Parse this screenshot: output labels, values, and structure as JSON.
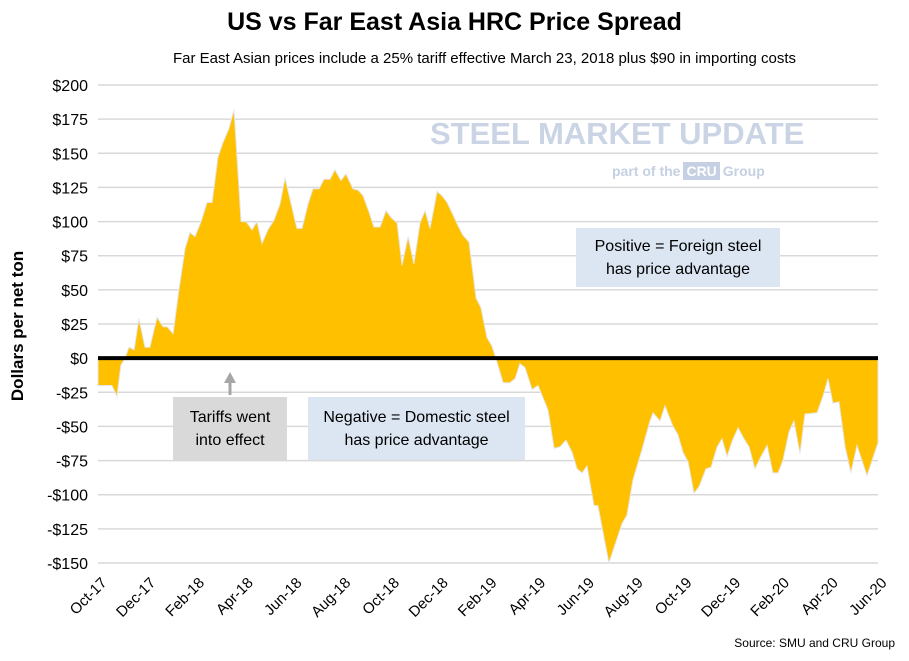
{
  "chart_data": {
    "type": "area",
    "title": "US vs Far East Asia HRC Price Spread",
    "subtitle": "Far East Asian prices include a 25% tariff effective March 23, 2018 plus $90 in importing costs",
    "ylabel": "Dollars per net ton",
    "xlabel": "",
    "x_units": "months since Oct-17",
    "ylim": [
      -150,
      200
    ],
    "xlim": [
      0,
      32
    ],
    "grid": true,
    "y_ticks": [
      200,
      175,
      150,
      125,
      100,
      75,
      50,
      25,
      0,
      -25,
      -50,
      -75,
      -100,
      -125,
      -150
    ],
    "y_tick_labels": [
      "$200",
      "$175",
      "$150",
      "$125",
      "$100",
      "$75",
      "$50",
      "$25",
      "$0",
      "-$25",
      "-$50",
      "-$75",
      "-$100",
      "-$125",
      "-$150"
    ],
    "x_tick_labels": [
      "Oct-17",
      "Dec-17",
      "Feb-18",
      "Apr-18",
      "Jun-18",
      "Aug-18",
      "Oct-18",
      "Dec-18",
      "Feb-19",
      "Apr-19",
      "Jun-19",
      "Aug-19",
      "Oct-19",
      "Dec-19",
      "Feb-20",
      "Apr-20",
      "Jun-20"
    ],
    "series": [
      {
        "name": "Price spread",
        "color": "#ffc000",
        "x": [
          0,
          0.29,
          0.57,
          0.78,
          0.94,
          1.11,
          1.27,
          1.48,
          1.68,
          1.93,
          2.13,
          2.42,
          2.67,
          2.83,
          3.08,
          3.32,
          3.57,
          3.77,
          3.98,
          4.23,
          4.47,
          4.68,
          4.92,
          5.13,
          5.37,
          5.58,
          5.87,
          6.07,
          6.32,
          6.52,
          6.73,
          6.97,
          7.22,
          7.47,
          7.67,
          7.92,
          8.16,
          8.37,
          8.62,
          8.82,
          9.07,
          9.27,
          9.52,
          9.72,
          9.97,
          10.17,
          10.46,
          10.67,
          10.87,
          11.12,
          11.32,
          11.57,
          11.82,
          12.02,
          12.27,
          12.47,
          12.72,
          12.96,
          13.21,
          13.42,
          13.62,
          13.91,
          14.11,
          14.32,
          14.56,
          14.77,
          14.97,
          15.22,
          15.51,
          15.71,
          15.96,
          16.16,
          16.37,
          16.62,
          16.9,
          17.11,
          17.31,
          17.52,
          17.81,
          18.05,
          18.46,
          18.71,
          18.95,
          19.2,
          19.45,
          19.65,
          19.86,
          20.06,
          20.35,
          20.51,
          20.96,
          21.5,
          21.7,
          21.95,
          22.32,
          22.63,
          22.77,
          23.06,
          23.26,
          23.59,
          23.79,
          24.0,
          24.21,
          24.45,
          24.66,
          24.94,
          25.15,
          25.4,
          25.6,
          25.81,
          26.01,
          26.26,
          26.5,
          26.71,
          26.95,
          27.2,
          27.45,
          27.69,
          27.9,
          28.1,
          28.35,
          28.55,
          28.8,
          29.0,
          29.5,
          29.74,
          29.95,
          30.15,
          30.4,
          30.65,
          30.89,
          31.14,
          31.55,
          32.0
        ],
        "values": [
          -20,
          -20,
          -20,
          -28,
          -5,
          0,
          8,
          6,
          29,
          8,
          8,
          30,
          23,
          23,
          18,
          50,
          80,
          92,
          89,
          100,
          114,
          114,
          147,
          158,
          168,
          182,
          100,
          100,
          94,
          100,
          84,
          94,
          101,
          113,
          132,
          113,
          95,
          95,
          113,
          124,
          124,
          131,
          131,
          138,
          130,
          135,
          124,
          123,
          119,
          107,
          96,
          96,
          108,
          103,
          99,
          68,
          89,
          69,
          99,
          108,
          95,
          122,
          119,
          114,
          105,
          97,
          90,
          85,
          44,
          37,
          15,
          9,
          -3,
          -18,
          -18,
          -15,
          -4,
          -7,
          -23,
          -20,
          -38,
          -66,
          -65,
          -60,
          -69,
          -81,
          -84,
          -79,
          -108,
          -108,
          -150,
          -121,
          -115,
          -89,
          -67,
          -47,
          -40,
          -46,
          -35,
          -50,
          -56,
          -69,
          -76,
          -99,
          -94,
          -81,
          -80,
          -65,
          -59,
          -72,
          -61,
          -51,
          -59,
          -65,
          -81,
          -72,
          -64,
          -84,
          -84,
          -75,
          -54,
          -46,
          -70,
          -41,
          -40,
          -28,
          -15,
          -33,
          -32,
          -65,
          -84,
          -64,
          -86,
          -62
        ]
      }
    ],
    "annotations": {
      "positive_line1": "Positive = Foreign steel",
      "positive_line2": "has price advantage",
      "negative_line1": "Negative = Domestic steel",
      "negative_line2": "has price advantage",
      "tariff_line1": "Tariffs went",
      "tariff_line2": "into effect"
    }
  },
  "watermark": {
    "brand": "STEEL MARKET UPDATE",
    "tagline_pre": "part of the",
    "tagline_cru": "CRU",
    "tagline_post": "Group"
  },
  "source": "Source: SMU and CRU Group",
  "colors": {
    "area": "#ffc000",
    "positive_box": "#dce6f2",
    "tariff_box": "#d9d9d9",
    "grid": "#d9d9d9"
  }
}
